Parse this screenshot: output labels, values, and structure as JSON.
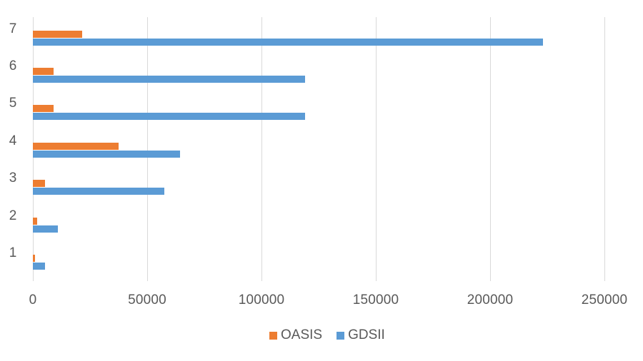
{
  "chart_data": {
    "type": "bar",
    "orientation": "horizontal",
    "title": "",
    "xlabel": "",
    "ylabel": "",
    "categories": [
      "1",
      "2",
      "3",
      "4",
      "5",
      "6",
      "7"
    ],
    "series": [
      {
        "name": "OASIS",
        "color": "#ED7D31",
        "values": [
          850,
          1900,
          5200,
          37500,
          9000,
          9000,
          21500
        ]
      },
      {
        "name": "GDSII",
        "color": "#5B9BD5",
        "values": [
          5200,
          10800,
          57500,
          64500,
          119000,
          119000,
          223000
        ]
      }
    ],
    "xlim": [
      0,
      250000
    ],
    "x_ticks": [
      "0",
      "50000",
      "100000",
      "150000",
      "200000",
      "250000"
    ],
    "x_tick_values": [
      0,
      50000,
      100000,
      150000,
      200000,
      250000
    ],
    "grid": "vertical major gridlines",
    "legend_position": "bottom"
  },
  "legend": {
    "items": [
      {
        "label": "OASIS",
        "color": "#ED7D31"
      },
      {
        "label": "GDSII",
        "color": "#5B9BD5"
      }
    ]
  }
}
